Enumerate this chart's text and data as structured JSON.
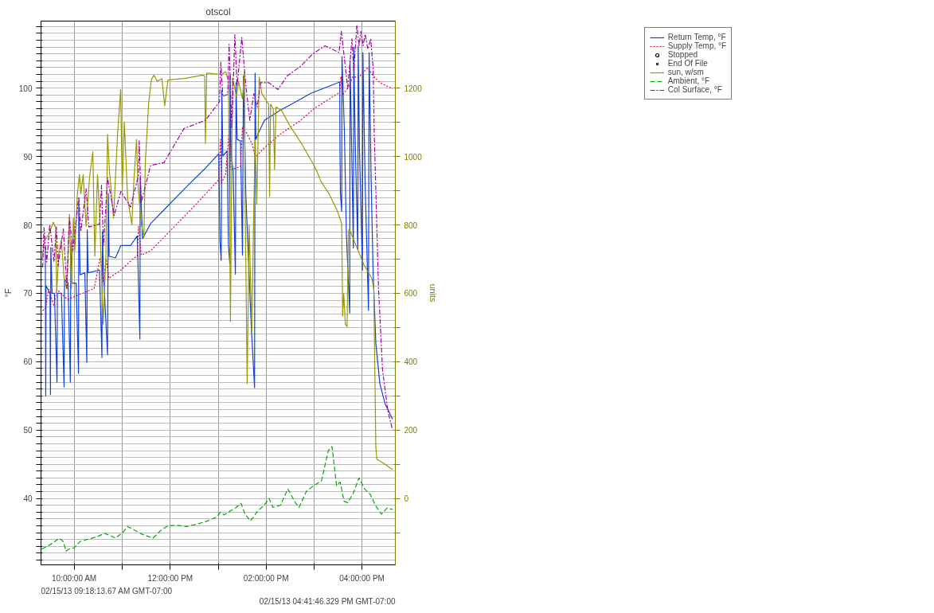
{
  "chart_data": {
    "type": "line",
    "title": "otscol",
    "ylabel": "°F",
    "y2label": "units",
    "xlim": [
      9.304,
      16.696
    ],
    "ylim": [
      30.3,
      109.8
    ],
    "y2lim": [
      -194,
      1396
    ],
    "xticks": [
      {
        "value": 10,
        "label": "10:00:00 AM"
      },
      {
        "value": 11,
        "label": null
      },
      {
        "value": 12,
        "label": "12:00:00 PM"
      },
      {
        "value": 13,
        "label": null
      },
      {
        "value": 14,
        "label": "02:00:00 PM"
      },
      {
        "value": 15,
        "label": null
      },
      {
        "value": 16,
        "label": "04:00:00 PM"
      }
    ],
    "yticks": [
      {
        "value": 31,
        "label": null
      },
      {
        "value": 32,
        "label": null
      },
      {
        "value": 33,
        "label": null
      },
      {
        "value": 34,
        "label": null
      },
      {
        "value": 35,
        "label": null
      },
      {
        "value": 36,
        "label": null
      },
      {
        "value": 37,
        "label": null
      },
      {
        "value": 38,
        "label": null
      },
      {
        "value": 39,
        "label": null
      },
      40,
      {
        "value": 41,
        "label": null
      },
      {
        "value": 42,
        "label": null
      },
      {
        "value": 43,
        "label": null
      },
      {
        "value": 44,
        "label": null
      },
      {
        "value": 45,
        "label": null
      },
      {
        "value": 46,
        "label": null
      },
      {
        "value": 47,
        "label": null
      },
      {
        "value": 48,
        "label": null
      },
      {
        "value": 49,
        "label": null
      },
      50,
      {
        "value": 51,
        "label": null
      },
      {
        "value": 52,
        "label": null
      },
      {
        "value": 53,
        "label": null
      },
      {
        "value": 54,
        "label": null
      },
      {
        "value": 55,
        "label": null
      },
      {
        "value": 56,
        "label": null
      },
      {
        "value": 57,
        "label": null
      },
      {
        "value": 58,
        "label": null
      },
      {
        "value": 59,
        "label": null
      },
      60,
      {
        "value": 61,
        "label": null
      },
      {
        "value": 62,
        "label": null
      },
      {
        "value": 63,
        "label": null
      },
      {
        "value": 64,
        "label": null
      },
      {
        "value": 65,
        "label": null
      },
      {
        "value": 66,
        "label": null
      },
      {
        "value": 67,
        "label": null
      },
      {
        "value": 68,
        "label": null
      },
      {
        "value": 69,
        "label": null
      },
      70,
      {
        "value": 71,
        "label": null
      },
      {
        "value": 72,
        "label": null
      },
      {
        "value": 73,
        "label": null
      },
      {
        "value": 74,
        "label": null
      },
      {
        "value": 75,
        "label": null
      },
      {
        "value": 76,
        "label": null
      },
      {
        "value": 77,
        "label": null
      },
      {
        "value": 78,
        "label": null
      },
      {
        "value": 79,
        "label": null
      },
      80,
      {
        "value": 81,
        "label": null
      },
      {
        "value": 82,
        "label": null
      },
      {
        "value": 83,
        "label": null
      },
      {
        "value": 84,
        "label": null
      },
      {
        "value": 85,
        "label": null
      },
      {
        "value": 86,
        "label": null
      },
      {
        "value": 87,
        "label": null
      },
      {
        "value": 88,
        "label": null
      },
      {
        "value": 89,
        "label": null
      },
      90,
      {
        "value": 91,
        "label": null
      },
      {
        "value": 92,
        "label": null
      },
      {
        "value": 93,
        "label": null
      },
      {
        "value": 94,
        "label": null
      },
      {
        "value": 95,
        "label": null
      },
      {
        "value": 96,
        "label": null
      },
      {
        "value": 97,
        "label": null
      },
      {
        "value": 98,
        "label": null
      },
      {
        "value": 99,
        "label": null
      },
      100,
      {
        "value": 101,
        "label": null
      },
      {
        "value": 102,
        "label": null
      },
      {
        "value": 103,
        "label": null
      },
      {
        "value": 104,
        "label": null
      },
      {
        "value": 105,
        "label": null
      },
      {
        "value": 106,
        "label": null
      },
      {
        "value": 107,
        "label": null
      },
      {
        "value": 108,
        "label": null
      },
      {
        "value": 109,
        "label": null
      }
    ],
    "y2ticks": [
      {
        "value": -100,
        "label": null
      },
      0,
      {
        "value": 100,
        "label": null
      },
      200,
      {
        "value": 300,
        "label": null
      },
      400,
      {
        "value": 500,
        "label": null
      },
      600,
      {
        "value": 700,
        "label": null
      },
      800,
      {
        "value": 900,
        "label": null
      },
      1000,
      {
        "value": 1100,
        "label": null
      },
      1200,
      {
        "value": 1300,
        "label": null
      }
    ],
    "grid": true,
    "legend": "top right",
    "annotations": [
      "02/15/13 09:18:13.67 AM GMT-07:00",
      "02/15/13 04:41:46.329 PM GMT-07:00"
    ],
    "series": [
      {
        "name": "Return Temp, °F",
        "color": "#1040e0",
        "line_style": "solid",
        "x": [
          9.339,
          9.395,
          9.403,
          9.409,
          9.492,
          9.501,
          9.509,
          9.534,
          9.584,
          9.638,
          9.645,
          9.73,
          9.785,
          9.794,
          9.869,
          9.916,
          9.927,
          9.945,
          10.036,
          10.087,
          10.092,
          10.12,
          10.218,
          10.26,
          10.268,
          10.288,
          10.524,
          10.575,
          10.586,
          10.608,
          10.692,
          10.709,
          10.726,
          10.859,
          10.971,
          11.172,
          11.312,
          11.367,
          11.373,
          11.423,
          11.591,
          11.981,
          12.372,
          12.734,
          13.013,
          13.036,
          13.063,
          13.077,
          13.097,
          13.187,
          13.214,
          13.242,
          13.248,
          13.27,
          13.312,
          13.359,
          13.373,
          13.395,
          13.466,
          13.507,
          13.527,
          13.549,
          13.577,
          13.688,
          13.759,
          13.77,
          13.786,
          13.856,
          13.968,
          14.302,
          14.721,
          14.922,
          15.536,
          15.541,
          15.55,
          15.577,
          15.583,
          15.633,
          15.675,
          15.745,
          15.751,
          15.773,
          15.82,
          15.829,
          15.856,
          15.913,
          15.921,
          15.948,
          16.01,
          16.019,
          16.066,
          16.136,
          16.149,
          16.191,
          16.234,
          16.289,
          16.373,
          16.484,
          16.638
        ],
        "values": [
          76.7,
          76.7,
          55,
          71.1,
          70,
          55.2,
          76.7,
          70,
          70,
          57,
          70,
          70,
          56.3,
          72,
          71.5,
          57,
          77.4,
          71.5,
          71.5,
          58.3,
          83.3,
          72.7,
          73,
          59.9,
          79.3,
          73,
          73.4,
          60.6,
          79,
          73,
          61,
          84.6,
          75.4,
          75.2,
          77,
          77,
          78.4,
          63.3,
          86.9,
          78,
          80.2,
          83,
          85.8,
          88.3,
          90.4,
          77.8,
          74.8,
          99.7,
          90.1,
          90.8,
          77,
          74.4,
          102,
          90.1,
          88,
          72.8,
          100.8,
          92.5,
          92.3,
          75.6,
          101.8,
          94,
          84.5,
          65.5,
          56.2,
          102.2,
          92.5,
          93.7,
          95.3,
          96.8,
          98.4,
          99.2,
          100.9,
          90.9,
          84.6,
          82,
          104.6,
          93.7,
          78.6,
          67.1,
          104,
          96,
          76.6,
          106,
          93,
          76.4,
          106.2,
          91,
          73.4,
          105.2,
          86,
          67.5,
          105.2,
          86.6,
          72.7,
          62.7,
          56.8,
          53.8,
          51.6
        ]
      },
      {
        "name": "Supply Temp, °F",
        "color": "#e8003c",
        "line_style": "dotted",
        "x": [
          9.339,
          9.395,
          9.464,
          9.576,
          9.632,
          9.855,
          10.134,
          10.413,
          10.538,
          10.608,
          10.664,
          10.72,
          10.971,
          11.25,
          11.312,
          11.339,
          11.395,
          11.591,
          11.981,
          12.427,
          13.013,
          13.047,
          13.07,
          13.159,
          13.22,
          13.27,
          13.466,
          13.507,
          13.605,
          13.717,
          13.773,
          13.968,
          14.302,
          14.721,
          15,
          15.536,
          15.563,
          15.591,
          15.703,
          15.815,
          15.927,
          16.038,
          16.122,
          16.234,
          16.373,
          16.638
        ],
        "values": [
          67.5,
          67.7,
          70.6,
          68.1,
          70.6,
          69.1,
          69.9,
          70.7,
          75.2,
          71.7,
          75,
          72.2,
          73.4,
          75.2,
          75.4,
          79.8,
          75.6,
          76.2,
          79,
          82.2,
          86.6,
          92.5,
          86.1,
          87.5,
          93.3,
          88.1,
          88.5,
          94.4,
          93.3,
          91.7,
          89.9,
          91.3,
          93.3,
          95.3,
          97,
          99.4,
          101.7,
          99,
          100,
          101.7,
          101.5,
          102.4,
          103,
          101.8,
          100.8,
          99.9
        ]
      },
      {
        "name": "Stopped",
        "type": "scatter",
        "marker": "circle",
        "color": "#000000"
      },
      {
        "name": "End Of File",
        "type": "scatter",
        "marker": "cross",
        "color": "#000000"
      },
      {
        "name": "sun, w/sm",
        "axis": "y2",
        "color": "#999900",
        "line_style": "solid",
        "x": [
          9.325,
          9.38,
          9.464,
          9.562,
          9.609,
          9.632,
          9.673,
          9.73,
          9.785,
          9.841,
          9.897,
          9.938,
          9.98,
          10.009,
          10.064,
          10.106,
          10.134,
          10.184,
          10.245,
          10.316,
          10.385,
          10.427,
          10.483,
          10.524,
          10.602,
          10.658,
          10.692,
          10.733,
          10.817,
          10.901,
          10.966,
          10.999,
          11.041,
          11.11,
          11.2,
          11.242,
          11.297,
          11.325,
          11.361,
          11.395,
          11.451,
          11.479,
          11.548,
          11.605,
          11.66,
          11.73,
          11.827,
          11.884,
          11.953,
          12.288,
          12.679,
          12.72,
          12.734,
          12.762,
          13.07,
          13.159,
          13.214,
          13.256,
          13.298,
          13.382,
          13.424,
          13.507,
          13.549,
          13.563,
          13.605,
          13.647,
          13.702,
          13.744,
          13.773,
          13.806,
          13.856,
          13.913,
          14.052,
          14.073,
          14.093,
          14.149,
          14.177,
          14.205,
          14.33,
          14.498,
          14.721,
          15,
          15.089,
          15.131,
          15.313,
          15.48,
          15.577,
          15.597,
          15.619,
          15.653,
          15.689,
          15.717,
          15.737,
          15.898,
          16.038,
          16.206,
          16.247,
          16.261,
          16.289,
          16.31,
          16.484,
          16.641
        ],
        "values": [
          700,
          756,
          772,
          808,
          790,
          605,
          716,
          756,
          644,
          613,
          831,
          613,
          820,
          724,
          891,
          947,
          891,
          947,
          796,
          938,
          1014,
          709,
          947,
          840,
          510,
          709,
          1065,
          956,
          820,
          1065,
          1196,
          899,
          1101,
          880,
          800,
          931,
          1050,
          920,
          860,
          804,
          764,
          978,
          1153,
          1224,
          1238,
          1220,
          1228,
          1149,
          1224,
          1228,
          1238,
          1235,
          1038,
          1244,
          1240,
          1248,
          1220,
          518,
          1230,
          1176,
          1220,
          1169,
          1248,
          867,
          336,
          800,
          487,
          860,
          1050,
          860,
          1232,
          1184,
          1153,
          883,
          1153,
          1140,
          962,
          1145,
          1133,
          1089,
          1042,
          974,
          947,
          930,
          891,
          843,
          804,
          533,
          600,
          510,
          502,
          780,
          788,
          732,
          684,
          644,
          613,
          454,
          150,
          115,
          100,
          84
        ]
      },
      {
        "name": "Ambient, °F",
        "color": "#00aa00",
        "line_style": "dashed",
        "x": [
          9.32,
          9.531,
          9.688,
          9.766,
          9.828,
          9.883,
          10,
          10.117,
          10.313,
          10.469,
          10.625,
          10.742,
          10.859,
          11.016,
          11.109,
          11.25,
          11.406,
          11.641,
          11.797,
          11.953,
          12.109,
          12.344,
          12.578,
          12.734,
          12.969,
          13.047,
          13.125,
          13.281,
          13.359,
          13.477,
          13.555,
          13.672,
          13.828,
          13.945,
          14.063,
          14.141,
          14.297,
          14.453,
          14.609,
          14.688,
          14.844,
          15,
          15.156,
          15.297,
          15.375,
          15.469,
          15.547,
          15.625,
          15.703,
          15.82,
          15.938,
          16.055,
          16.172,
          16.289,
          16.406,
          16.523,
          16.641
        ],
        "values": [
          32.6,
          33.4,
          34.2,
          33.7,
          32.3,
          32.6,
          32.8,
          33.7,
          34.1,
          34.4,
          34.9,
          34.6,
          34.2,
          35.1,
          35.9,
          35.4,
          34.8,
          34.2,
          35.3,
          36,
          36.1,
          35.9,
          36.3,
          36.6,
          37.3,
          38,
          37.6,
          38.3,
          38.6,
          39.3,
          37.8,
          36.7,
          38.2,
          38.9,
          40,
          38.7,
          39,
          41.4,
          39.4,
          38.7,
          41.1,
          41.9,
          42.6,
          47,
          47.6,
          41.9,
          42.4,
          39.6,
          39.4,
          40.8,
          43,
          41.4,
          40.6,
          38.9,
          37.7,
          38.6,
          38.4
        ]
      },
      {
        "name": "Col Surface, °F",
        "color": "#aa00aa",
        "line_style": "dashdot",
        "x": [
          9.339,
          9.366,
          9.423,
          9.487,
          9.576,
          9.626,
          9.66,
          9.771,
          9.841,
          9.897,
          9.967,
          10.092,
          10.134,
          10.245,
          10.302,
          10.524,
          10.566,
          10.608,
          10.692,
          10.831,
          10.971,
          11.172,
          11.339,
          11.353,
          11.395,
          11.591,
          11.869,
          12.288,
          12.734,
          13.027,
          13.055,
          13.097,
          13.2,
          13.228,
          13.284,
          13.348,
          13.395,
          13.493,
          13.577,
          13.66,
          13.744,
          13.814,
          13.884,
          14.052,
          14.247,
          14.442,
          14.721,
          14.972,
          15.229,
          15.522,
          15.569,
          15.703,
          15.792,
          15.829,
          15.893,
          15.94,
          15.977,
          16.024,
          16.066,
          16.122,
          16.183,
          16.234,
          16.255,
          16.345,
          16.429,
          16.54,
          16.638
        ],
        "values": [
          73.8,
          79.6,
          74.6,
          80,
          74.6,
          79.7,
          74,
          79.4,
          70.7,
          81,
          76.2,
          84.1,
          79,
          85.3,
          79.7,
          80.1,
          85.8,
          77,
          86.9,
          81.4,
          84.9,
          82.6,
          87.3,
          92.3,
          83.3,
          88.7,
          89.1,
          94.1,
          95.3,
          98,
          103.8,
          98.8,
          99.1,
          106.4,
          94.1,
          107.8,
          100.4,
          107.4,
          100.4,
          95.3,
          99.2,
          97.2,
          100.8,
          100.8,
          99.8,
          101.8,
          103.2,
          105,
          106.2,
          105.2,
          108.3,
          100,
          107.2,
          102.4,
          109.2,
          106.2,
          108.3,
          106.2,
          107.9,
          105.7,
          107.2,
          102.8,
          93.7,
          70.7,
          58.8,
          52.8,
          50
        ]
      }
    ]
  }
}
